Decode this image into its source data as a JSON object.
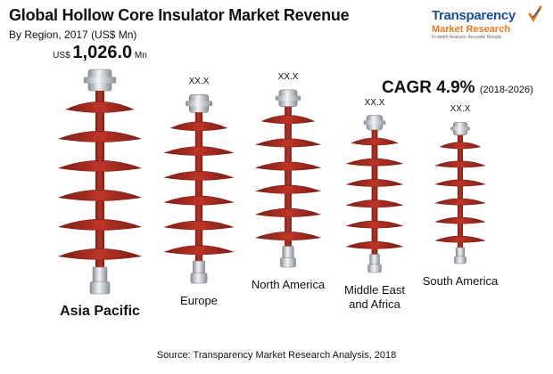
{
  "chart_data": {
    "type": "bar",
    "title": "Global Hollow Core Insulator Market Revenue",
    "subtitle": "By Region, 2017 (US$ Mn)",
    "categories": [
      "Asia Pacific",
      "Europe",
      "North America",
      "Middle East and Africa",
      "South America"
    ],
    "category_lines": [
      [
        "Asia Pacific"
      ],
      [
        "Europe"
      ],
      [
        "North America"
      ],
      [
        "Middle East",
        "and Africa"
      ],
      [
        "South America"
      ]
    ],
    "values": [
      1026.0,
      null,
      null,
      null,
      null
    ],
    "value_labels": [
      {
        "prefix": "US$",
        "number": "1,026.0",
        "suffix": "Mn"
      },
      {
        "prefix": "",
        "number": "XX.X",
        "suffix": ""
      },
      {
        "prefix": "",
        "number": "XX.X",
        "suffix": ""
      },
      {
        "prefix": "",
        "number": "XX.X",
        "suffix": ""
      },
      {
        "prefix": "",
        "number": "XX.X",
        "suffix": ""
      }
    ],
    "relative_heights": [
      1.0,
      0.84,
      0.79,
      0.7,
      0.63
    ],
    "annotations": {
      "cagr_label": "CAGR 4.9%",
      "cagr_period": "(2018-2026)"
    },
    "source": "Source: Transparency Market Research Analysis, 2018",
    "colors": {
      "shed": "#b93326",
      "shed_dark": "#7e1f17",
      "metal": "#cfd3d8",
      "metal_dark": "#8b9097"
    }
  },
  "brand": {
    "name": "Transparency",
    "sub": "Market Research",
    "tagline": "In-depth Analysis. Accurate Results",
    "colors": {
      "primary": "#1d4f91",
      "accent": "#e07b22"
    }
  }
}
